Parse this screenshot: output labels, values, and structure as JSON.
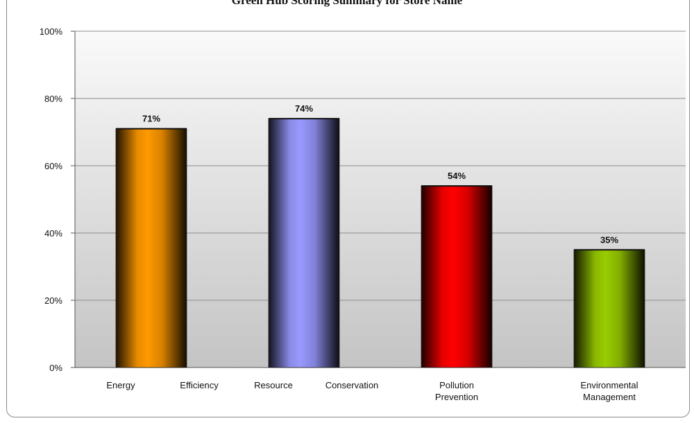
{
  "chart_data": {
    "type": "bar",
    "title": "Green Hub Scoring Summary for Store Name",
    "categories": [
      "Energy Efficiency",
      "Resource Conservation",
      "Pollution Prevention",
      "Environmental Management"
    ],
    "category_lines": [
      [
        "Energy",
        "Efficiency"
      ],
      [
        "Resource",
        "Conservation"
      ],
      [
        "Pollution",
        "Prevention"
      ],
      [
        "Environmental",
        "Management"
      ]
    ],
    "values": [
      71,
      74,
      54,
      35
    ],
    "data_labels": [
      "71%",
      "74%",
      "54%",
      "35%"
    ],
    "bar_colors": [
      "#ff9900",
      "#9999ff",
      "#ff0000",
      "#99cc00"
    ],
    "yticks": [
      "0%",
      "20%",
      "40%",
      "60%",
      "80%",
      "100%"
    ],
    "ylim": [
      0,
      100
    ],
    "xlabel": "",
    "ylabel": "",
    "grid": true,
    "legend": "none"
  }
}
